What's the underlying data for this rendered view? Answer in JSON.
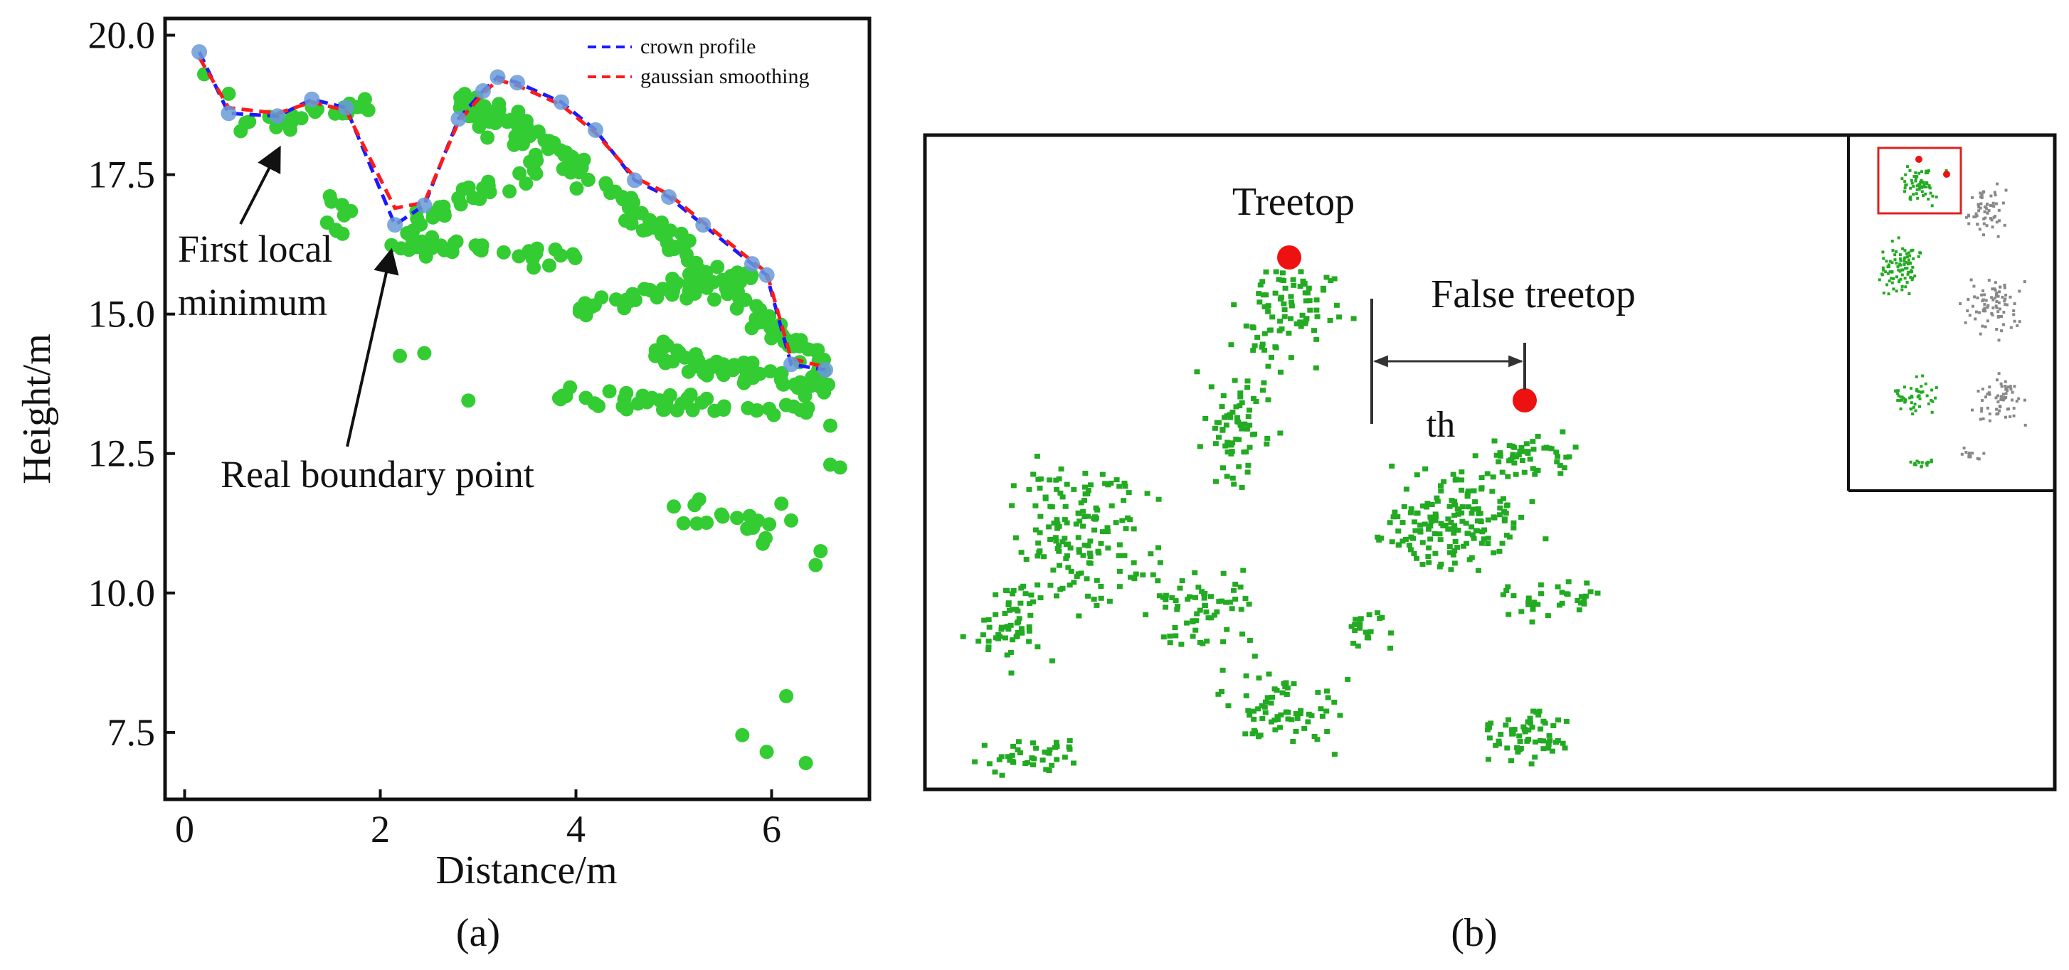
{
  "panel_a": {
    "caption": "(a)",
    "annotations": {
      "first_local_line1": "First local",
      "first_local_line2": "minimum",
      "real_boundary": "Real boundary point"
    },
    "chart_data": {
      "type": "scatter",
      "xlabel": "Distance/m",
      "ylabel": "Height/m",
      "xlim": [
        -0.2,
        7.0
      ],
      "ylim": [
        6.3,
        20.3
      ],
      "xticks": [
        "0",
        "2",
        "4",
        "6"
      ],
      "yticks": [
        "7.5",
        "10.0",
        "12.5",
        "15.0",
        "17.5",
        "20.0"
      ],
      "legend": {
        "placement": "top-right",
        "entries": [
          "crown profile",
          "gaussian smoothing"
        ]
      },
      "colors": {
        "points": "#33cc33",
        "profile_points": "#6a9ad8",
        "crown_profile": "#1a1aff",
        "gaussian": "#ff1a1a"
      },
      "series": [
        {
          "name": "crown profile",
          "x": [
            0.15,
            0.45,
            0.95,
            1.3,
            1.65,
            2.15,
            2.45,
            2.8,
            3.05,
            3.2,
            3.4,
            3.85,
            4.2,
            4.6,
            4.95,
            5.3,
            5.8,
            5.95,
            6.2,
            6.55
          ],
          "y": [
            19.7,
            18.6,
            18.55,
            18.85,
            18.7,
            16.6,
            16.95,
            18.5,
            19.0,
            19.25,
            19.15,
            18.8,
            18.3,
            17.4,
            17.1,
            16.6,
            15.9,
            15.7,
            14.1,
            14.0
          ]
        },
        {
          "name": "gaussian smoothing",
          "x": [
            0.15,
            0.45,
            0.95,
            1.3,
            1.65,
            2.15,
            2.45,
            2.8,
            3.05,
            3.2,
            3.4,
            3.85,
            4.2,
            4.6,
            4.95,
            5.3,
            5.8,
            5.95,
            6.2,
            6.55
          ],
          "y": [
            19.6,
            18.7,
            18.6,
            18.8,
            18.65,
            16.9,
            17.0,
            18.45,
            18.95,
            19.2,
            19.1,
            18.75,
            18.25,
            17.45,
            17.15,
            16.65,
            15.95,
            15.75,
            14.2,
            14.05
          ]
        }
      ]
    }
  },
  "panel_b": {
    "caption": "(b)",
    "labels": {
      "treetop": "Treetop",
      "false_treetop": "False treetop",
      "threshold": "th"
    },
    "colors": {
      "points": "#22aa22",
      "treetop": "#ee1111",
      "inset_gray": "#888888",
      "inset_box": "#e02020"
    }
  }
}
